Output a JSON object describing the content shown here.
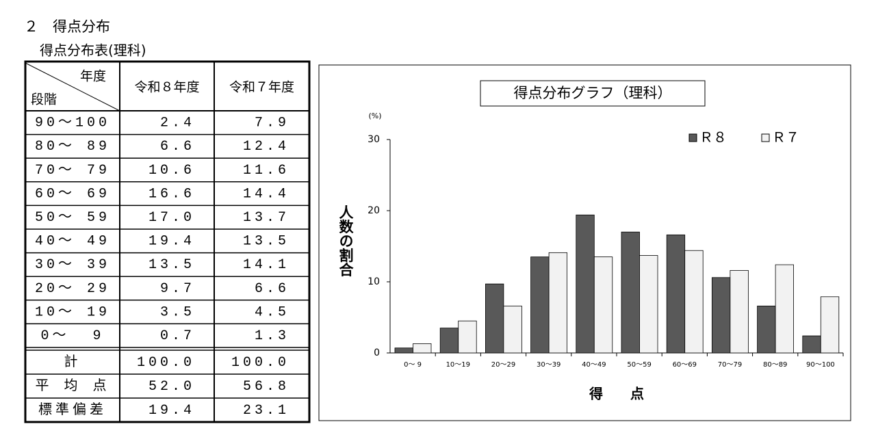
{
  "heading": "２　得点分布",
  "table": {
    "title": "得点分布表(理科)",
    "corner_top": "年度",
    "corner_bottom": "段階",
    "columns": [
      "令和８年度",
      "令和７年度"
    ],
    "rows": [
      [
        "90～100",
        "2.4",
        "7.9"
      ],
      [
        "80～ 89",
        "6.6",
        "12.4"
      ],
      [
        "70～ 79",
        "10.6",
        "11.6"
      ],
      [
        "60～ 69",
        "16.6",
        "14.4"
      ],
      [
        "50～ 59",
        "17.0",
        "13.7"
      ],
      [
        "40～ 49",
        "19.4",
        "13.5"
      ],
      [
        "30～ 39",
        "13.5",
        "14.1"
      ],
      [
        "20～ 29",
        "9.7",
        "6.6"
      ],
      [
        "10～ 19",
        "3.5",
        "4.5"
      ],
      [
        "0～  9",
        "0.7",
        "1.3"
      ]
    ],
    "summary": [
      [
        "計",
        "100.0",
        "100.0"
      ],
      [
        "平 均 点",
        "52.0",
        "56.8"
      ],
      [
        "標準偏差",
        "19.4",
        "23.1"
      ]
    ]
  },
  "chart_data": {
    "type": "bar",
    "title": "得点分布グラフ（理科）",
    "y_unit": "(%)",
    "ylabel": "人数の割合",
    "xlabel": "得　　点",
    "categories": [
      "0～ 9",
      "10～19",
      "20～29",
      "30～39",
      "40～49",
      "50～59",
      "60～69",
      "70～79",
      "80～89",
      "90～100"
    ],
    "series": [
      {
        "name": "Ｒ８",
        "color": "#595959",
        "values": [
          0.7,
          3.5,
          9.7,
          13.5,
          19.4,
          17.0,
          16.6,
          10.6,
          6.6,
          2.4
        ]
      },
      {
        "name": "Ｒ７",
        "color": "#f2f2f2",
        "values": [
          1.3,
          4.5,
          6.6,
          14.1,
          13.5,
          13.7,
          14.4,
          11.6,
          12.4,
          7.9
        ]
      }
    ],
    "ylim": [
      0,
      30
    ],
    "yticks": [
      0,
      10,
      20,
      30
    ],
    "legend": "upper right"
  }
}
